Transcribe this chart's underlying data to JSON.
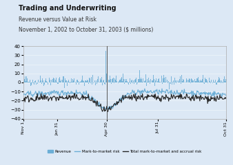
{
  "title": "Trading and Underwriting",
  "subtitle1": "Revenue versus Value at Risk",
  "subtitle2": "November 1, 2002 to October 31, 2003 ($ millions)",
  "ylim": [
    -40,
    40
  ],
  "yticks": [
    -40,
    -30,
    -20,
    -10,
    0,
    10,
    20,
    30,
    40
  ],
  "xtick_labels": [
    "Nov 1",
    "Jan 31",
    "Apr 30",
    "Jul 31",
    "Oct 31"
  ],
  "xtick_positions": [
    0,
    61,
    150,
    242,
    364
  ],
  "n_points": 365,
  "revenue_color": "#6baed6",
  "mtm_risk_color": "#6baed6",
  "total_risk_color": "#252525",
  "background_color": "#dce8f5",
  "legend_revenue": "Revenue",
  "legend_mtm": "Mark-to-market risk",
  "legend_total": "Total mark-to-market and accrual risk",
  "vline_x": 150,
  "seed": 42
}
